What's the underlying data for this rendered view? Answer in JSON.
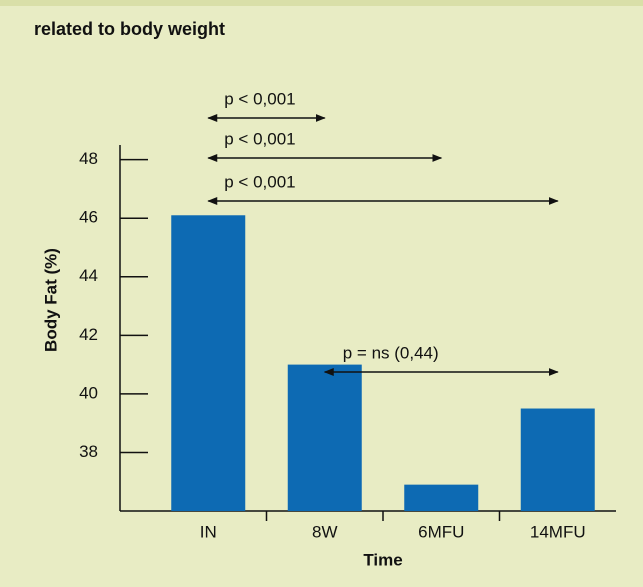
{
  "chart_data": {
    "type": "bar",
    "title": "related to body weight",
    "y_label": "Body Fat (%)",
    "x_label": "Time",
    "categories": [
      "IN",
      "8W",
      "6MFU",
      "14MFU"
    ],
    "values": [
      46.1,
      41.0,
      36.9,
      39.5
    ],
    "color": "#0d6ab3",
    "ylim": [
      36,
      48.5
    ],
    "yticks": [
      38,
      40,
      42,
      44,
      46,
      48
    ],
    "annotations": [
      {
        "text": "p < 0,001",
        "from": "IN",
        "to": "8W"
      },
      {
        "text": "p < 0,001",
        "from": "IN",
        "to": "6MFU"
      },
      {
        "text": "p < 0,001",
        "from": "IN",
        "to": "14MFU"
      },
      {
        "text": "p = ns (0,44)",
        "from": "8W",
        "to": "14MFU"
      }
    ]
  }
}
